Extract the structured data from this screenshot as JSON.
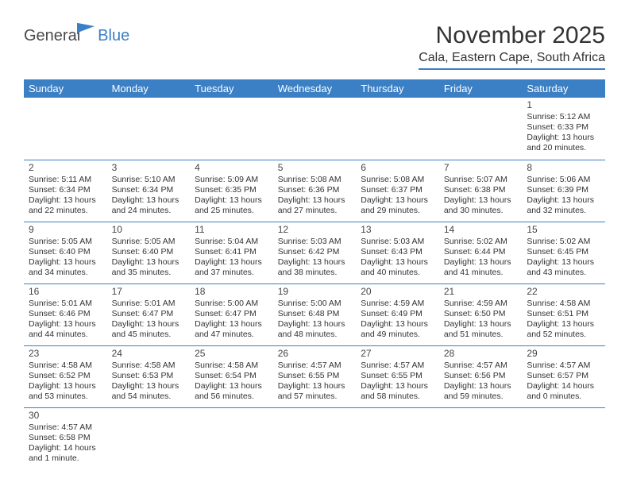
{
  "logo": {
    "general": "General",
    "blue": "Blue"
  },
  "title": "November 2025",
  "location": "Cala, Eastern Cape, South Africa",
  "colors": {
    "brand": "#3b7fc4",
    "text": "#333333",
    "bg": "#ffffff",
    "headerText": "#ffffff"
  },
  "dayNames": [
    "Sunday",
    "Monday",
    "Tuesday",
    "Wednesday",
    "Thursday",
    "Friday",
    "Saturday"
  ],
  "weeks": [
    [
      null,
      null,
      null,
      null,
      null,
      null,
      {
        "n": "1",
        "sr": "5:12 AM",
        "ss": "6:33 PM",
        "dl": "13 hours and 20 minutes."
      }
    ],
    [
      {
        "n": "2",
        "sr": "5:11 AM",
        "ss": "6:34 PM",
        "dl": "13 hours and 22 minutes."
      },
      {
        "n": "3",
        "sr": "5:10 AM",
        "ss": "6:34 PM",
        "dl": "13 hours and 24 minutes."
      },
      {
        "n": "4",
        "sr": "5:09 AM",
        "ss": "6:35 PM",
        "dl": "13 hours and 25 minutes."
      },
      {
        "n": "5",
        "sr": "5:08 AM",
        "ss": "6:36 PM",
        "dl": "13 hours and 27 minutes."
      },
      {
        "n": "6",
        "sr": "5:08 AM",
        "ss": "6:37 PM",
        "dl": "13 hours and 29 minutes."
      },
      {
        "n": "7",
        "sr": "5:07 AM",
        "ss": "6:38 PM",
        "dl": "13 hours and 30 minutes."
      },
      {
        "n": "8",
        "sr": "5:06 AM",
        "ss": "6:39 PM",
        "dl": "13 hours and 32 minutes."
      }
    ],
    [
      {
        "n": "9",
        "sr": "5:05 AM",
        "ss": "6:40 PM",
        "dl": "13 hours and 34 minutes."
      },
      {
        "n": "10",
        "sr": "5:05 AM",
        "ss": "6:40 PM",
        "dl": "13 hours and 35 minutes."
      },
      {
        "n": "11",
        "sr": "5:04 AM",
        "ss": "6:41 PM",
        "dl": "13 hours and 37 minutes."
      },
      {
        "n": "12",
        "sr": "5:03 AM",
        "ss": "6:42 PM",
        "dl": "13 hours and 38 minutes."
      },
      {
        "n": "13",
        "sr": "5:03 AM",
        "ss": "6:43 PM",
        "dl": "13 hours and 40 minutes."
      },
      {
        "n": "14",
        "sr": "5:02 AM",
        "ss": "6:44 PM",
        "dl": "13 hours and 41 minutes."
      },
      {
        "n": "15",
        "sr": "5:02 AM",
        "ss": "6:45 PM",
        "dl": "13 hours and 43 minutes."
      }
    ],
    [
      {
        "n": "16",
        "sr": "5:01 AM",
        "ss": "6:46 PM",
        "dl": "13 hours and 44 minutes."
      },
      {
        "n": "17",
        "sr": "5:01 AM",
        "ss": "6:47 PM",
        "dl": "13 hours and 45 minutes."
      },
      {
        "n": "18",
        "sr": "5:00 AM",
        "ss": "6:47 PM",
        "dl": "13 hours and 47 minutes."
      },
      {
        "n": "19",
        "sr": "5:00 AM",
        "ss": "6:48 PM",
        "dl": "13 hours and 48 minutes."
      },
      {
        "n": "20",
        "sr": "4:59 AM",
        "ss": "6:49 PM",
        "dl": "13 hours and 49 minutes."
      },
      {
        "n": "21",
        "sr": "4:59 AM",
        "ss": "6:50 PM",
        "dl": "13 hours and 51 minutes."
      },
      {
        "n": "22",
        "sr": "4:58 AM",
        "ss": "6:51 PM",
        "dl": "13 hours and 52 minutes."
      }
    ],
    [
      {
        "n": "23",
        "sr": "4:58 AM",
        "ss": "6:52 PM",
        "dl": "13 hours and 53 minutes."
      },
      {
        "n": "24",
        "sr": "4:58 AM",
        "ss": "6:53 PM",
        "dl": "13 hours and 54 minutes."
      },
      {
        "n": "25",
        "sr": "4:58 AM",
        "ss": "6:54 PM",
        "dl": "13 hours and 56 minutes."
      },
      {
        "n": "26",
        "sr": "4:57 AM",
        "ss": "6:55 PM",
        "dl": "13 hours and 57 minutes."
      },
      {
        "n": "27",
        "sr": "4:57 AM",
        "ss": "6:55 PM",
        "dl": "13 hours and 58 minutes."
      },
      {
        "n": "28",
        "sr": "4:57 AM",
        "ss": "6:56 PM",
        "dl": "13 hours and 59 minutes."
      },
      {
        "n": "29",
        "sr": "4:57 AM",
        "ss": "6:57 PM",
        "dl": "14 hours and 0 minutes."
      }
    ],
    [
      {
        "n": "30",
        "sr": "4:57 AM",
        "ss": "6:58 PM",
        "dl": "14 hours and 1 minute."
      },
      null,
      null,
      null,
      null,
      null,
      null
    ]
  ],
  "labels": {
    "sunrise": "Sunrise: ",
    "sunset": "Sunset: ",
    "daylight": "Daylight: "
  }
}
